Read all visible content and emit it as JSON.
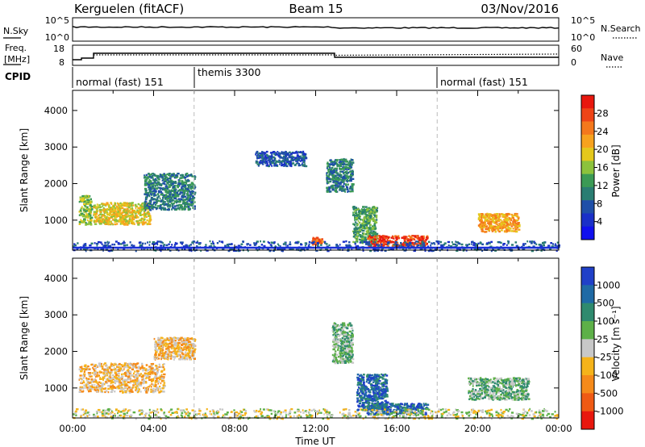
{
  "header": {
    "station": "Kerguelen (fitACF)",
    "beam": "Beam 15",
    "date": "03/Nov/2016"
  },
  "top_panels": {
    "nsky_label": "N.Sky",
    "nsky_ticks": [
      "10^5",
      "10^0"
    ],
    "nsearch_label": "N.Search",
    "nsearch_ticks": [
      "10^5",
      "10^0"
    ],
    "freq_label": "Freq.",
    "freq_unit": "[MHz]",
    "freq_ticks": [
      "18",
      "8"
    ],
    "nave_label": "Nave",
    "nave_ticks": [
      "60",
      "0"
    ],
    "cpid_label": "CPID",
    "cpid_segments": [
      {
        "name": "normal (fast) 151",
        "start_hour": 0,
        "end_hour": 6
      },
      {
        "name": "themis 3300",
        "start_hour": 6,
        "end_hour": 18
      },
      {
        "name": "normal (fast) 151",
        "start_hour": 18,
        "end_hour": 24
      }
    ]
  },
  "chart_data": [
    {
      "type": "heatmap",
      "quantity": "Power",
      "xlabel": "",
      "ylabel": "Slant Range [km]",
      "xlim_hours": [
        0,
        24
      ],
      "ylim_km": [
        180,
        4550
      ],
      "yticks": [
        1000,
        2000,
        3000,
        4000
      ],
      "colorbar_label": "Power [dB]",
      "colorbar_ticks": [
        "28",
        "24",
        "20",
        "16",
        "12",
        "8",
        "4"
      ],
      "colorbar_colors": [
        "#e8170e",
        "#ee4417",
        "#f4781c",
        "#f7a21e",
        "#e4c81c",
        "#8cc23c",
        "#3b9a55",
        "#2a7d72",
        "#1f4fa8",
        "#1a30c8",
        "#1010ee"
      ],
      "scatter_regions": [
        {
          "time_hours": [
            0.3,
            0.9
          ],
          "range_km": [
            900,
            1700
          ],
          "level_db": 14,
          "description": "early range echoes"
        },
        {
          "time_hours": [
            1.0,
            3.8
          ],
          "range_km": [
            900,
            1500
          ],
          "level_db": 16
        },
        {
          "time_hours": [
            3.5,
            6.0
          ],
          "range_km": [
            1300,
            2300
          ],
          "level_db": 8
        },
        {
          "time_hours": [
            9.0,
            11.5
          ],
          "range_km": [
            2500,
            2900
          ],
          "level_db": 6
        },
        {
          "time_hours": [
            11.8,
            12.3
          ],
          "range_km": [
            350,
            550
          ],
          "level_db": 22
        },
        {
          "time_hours": [
            12.5,
            13.8
          ],
          "range_km": [
            1800,
            2700
          ],
          "level_db": 8
        },
        {
          "time_hours": [
            13.8,
            15.0
          ],
          "range_km": [
            400,
            1400
          ],
          "level_db": 12
        },
        {
          "time_hours": [
            14.5,
            17.5
          ],
          "range_km": [
            300,
            600
          ],
          "level_db": 24
        },
        {
          "time_hours": [
            20.0,
            22.0
          ],
          "range_km": [
            700,
            1200
          ],
          "level_db": 20
        },
        {
          "time_hours": [
            0.0,
            24.0
          ],
          "range_km": [
            180,
            450
          ],
          "level_db": 6,
          "description": "near-range ground band"
        }
      ]
    },
    {
      "type": "heatmap",
      "quantity": "Velocity",
      "xlabel": "Time UT",
      "ylabel": "Slant Range [km]",
      "xlim_hours": [
        0,
        24
      ],
      "ylim_km": [
        180,
        4550
      ],
      "yticks": [
        1000,
        2000,
        3000,
        4000
      ],
      "xtick_labels": [
        "00:00",
        "04:00",
        "08:00",
        "12:00",
        "16:00",
        "20:00",
        "00:00"
      ],
      "colorbar_label": "Velocity [m s⁻¹]",
      "colorbar_ticks": [
        "1000",
        "500",
        "100",
        "25",
        "-25",
        "-100",
        "-500",
        "-1000"
      ],
      "colorbar_colors": [
        "#2040c8",
        "#1f6aa5",
        "#2f8a6e",
        "#5db048",
        "#c8c8c8",
        "#f5b31a",
        "#f58a1a",
        "#ef5a14",
        "#e8170e"
      ],
      "scatter_regions": [
        {
          "time_hours": [
            0.3,
            4.5
          ],
          "range_km": [
            900,
            1700
          ],
          "velocity_ms": -300
        },
        {
          "time_hours": [
            4.0,
            6.0
          ],
          "range_km": [
            1800,
            2400
          ],
          "velocity_ms": -400
        },
        {
          "time_hours": [
            12.8,
            13.8
          ],
          "range_km": [
            1700,
            2800
          ],
          "velocity_ms": 0
        },
        {
          "time_hours": [
            14.0,
            15.5
          ],
          "range_km": [
            400,
            1400
          ],
          "velocity_ms": 300
        },
        {
          "time_hours": [
            14.5,
            17.5
          ],
          "range_km": [
            300,
            600
          ],
          "velocity_ms": 120
        },
        {
          "time_hours": [
            19.5,
            22.5
          ],
          "range_km": [
            700,
            1300
          ],
          "velocity_ms": 0
        },
        {
          "time_hours": [
            0.0,
            24.0
          ],
          "range_km": [
            180,
            450
          ],
          "velocity_ms": -50
        }
      ]
    }
  ]
}
